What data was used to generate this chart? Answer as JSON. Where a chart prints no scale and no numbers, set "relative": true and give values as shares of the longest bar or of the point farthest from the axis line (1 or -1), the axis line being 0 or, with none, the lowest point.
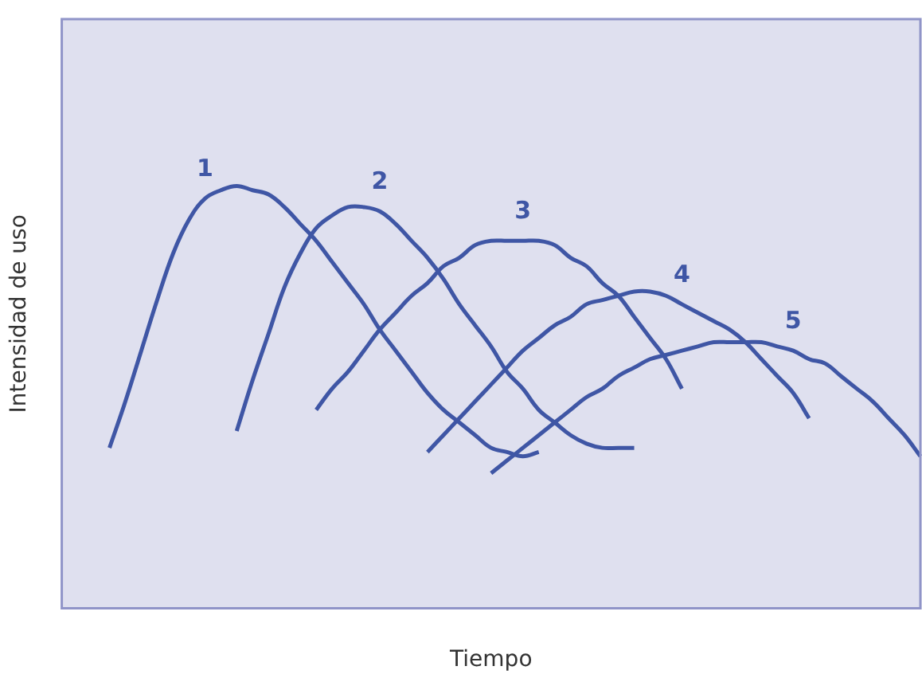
{
  "chart_data": {
    "type": "line",
    "relative": true,
    "xlabel": "Tiempo",
    "ylabel": "Intensidad de uso",
    "legend": false,
    "grid": false,
    "marker": "none",
    "line_style": "solid",
    "categories": [
      null,
      null,
      null,
      null,
      null,
      null,
      null,
      null,
      null,
      null,
      null,
      null,
      null,
      null,
      null,
      null,
      null,
      null,
      null,
      null,
      null,
      null,
      null,
      null,
      null,
      null,
      null,
      null,
      null,
      null,
      null,
      null,
      null,
      null,
      null,
      null,
      null,
      null,
      null,
      null,
      null,
      null,
      null,
      null,
      null,
      null,
      null,
      null,
      null,
      null,
      null,
      null,
      null,
      null,
      null
    ],
    "series": [
      {
        "name": "1",
        "color": "#3f56a5",
        "values": [
          null,
          null,
          null,
          0.38,
          0.49,
          0.61,
          0.73,
          0.84,
          0.92,
          0.97,
          0.99,
          1,
          0.99,
          0.98,
          0.95,
          0.91,
          0.87,
          0.82,
          0.77,
          0.72,
          0.66,
          0.61,
          0.56,
          0.51,
          0.47,
          0.44,
          0.41,
          0.38,
          0.37,
          0.36,
          0.37,
          null,
          null,
          null,
          null,
          null,
          null,
          null,
          null,
          null,
          null,
          null,
          null,
          null,
          null,
          null,
          null,
          null,
          null,
          null,
          null,
          null,
          null,
          null,
          null
        ]
      },
      {
        "name": "2",
        "color": "#3f56a5",
        "values": [
          null,
          null,
          null,
          null,
          null,
          null,
          null,
          null,
          null,
          null,
          null,
          0.42,
          0.54,
          0.65,
          0.76,
          0.84,
          0.9,
          0.93,
          0.95,
          0.95,
          0.94,
          0.91,
          0.87,
          0.83,
          0.78,
          0.72,
          0.67,
          0.62,
          0.56,
          0.52,
          0.47,
          0.44,
          0.41,
          0.39,
          0.38,
          0.38,
          0.38,
          null,
          null,
          null,
          null,
          null,
          null,
          null,
          null,
          null,
          null,
          null,
          null,
          null,
          null,
          null,
          null,
          null,
          null
        ]
      },
      {
        "name": "3",
        "color": "#3f56a5",
        "values": [
          null,
          null,
          null,
          null,
          null,
          null,
          null,
          null,
          null,
          null,
          null,
          null,
          null,
          null,
          null,
          null,
          0.47,
          0.52,
          0.56,
          0.61,
          0.66,
          0.7,
          0.74,
          0.77,
          0.81,
          0.83,
          0.86,
          0.87,
          0.87,
          0.87,
          0.87,
          0.86,
          0.83,
          0.81,
          0.77,
          0.74,
          0.69,
          0.64,
          0.59,
          0.52,
          null,
          null,
          null,
          null,
          null,
          null,
          null,
          null,
          null,
          null,
          null,
          null,
          null,
          null,
          null
        ]
      },
      {
        "name": "4",
        "color": "#3f56a5",
        "values": [
          null,
          null,
          null,
          null,
          null,
          null,
          null,
          null,
          null,
          null,
          null,
          null,
          null,
          null,
          null,
          null,
          null,
          null,
          null,
          null,
          null,
          null,
          null,
          0.37,
          0.41,
          0.45,
          0.49,
          0.53,
          0.57,
          0.61,
          0.64,
          0.67,
          0.69,
          0.72,
          0.73,
          0.74,
          0.75,
          0.75,
          0.74,
          0.72,
          0.7,
          0.68,
          0.66,
          0.63,
          0.59,
          0.55,
          0.51,
          0.45,
          null,
          null,
          null,
          null,
          null,
          null,
          null
        ]
      },
      {
        "name": "5",
        "color": "#3f56a5",
        "values": [
          null,
          null,
          null,
          null,
          null,
          null,
          null,
          null,
          null,
          null,
          null,
          null,
          null,
          null,
          null,
          null,
          null,
          null,
          null,
          null,
          null,
          null,
          null,
          null,
          null,
          null,
          null,
          0.32,
          0.35,
          0.38,
          0.41,
          0.44,
          0.47,
          0.5,
          0.52,
          0.55,
          0.57,
          0.59,
          0.6,
          0.61,
          0.62,
          0.63,
          0.63,
          0.63,
          0.63,
          0.62,
          0.61,
          0.59,
          0.58,
          0.55,
          0.52,
          0.49,
          0.45,
          0.41,
          0.36
        ]
      }
    ]
  }
}
